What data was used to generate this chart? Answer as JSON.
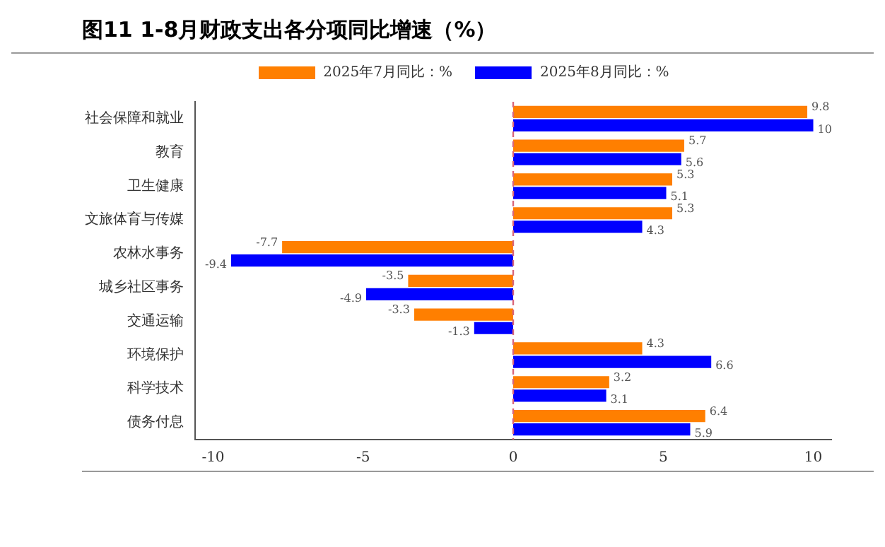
{
  "chart_data": {
    "type": "bar",
    "orientation": "horizontal",
    "title": "图11 1-8月财政支出各分项同比增速（%）",
    "categories": [
      "社会保障和就业",
      "教育",
      "卫生健康",
      "文旅体育与传媒",
      "农林水事务",
      "城乡社区事务",
      "交通运输",
      "环境保护",
      "科学技术",
      "债务付息"
    ],
    "series": [
      {
        "name": "2025年7月同比：%",
        "color": "#ff7f00",
        "values": [
          9.8,
          5.7,
          5.3,
          5.3,
          -7.7,
          -3.5,
          -3.3,
          4.3,
          3.2,
          6.4
        ]
      },
      {
        "name": "2025年8月同比：%",
        "color": "#0000ff",
        "values": [
          10,
          5.6,
          5.1,
          4.3,
          -9.4,
          -4.9,
          -1.3,
          6.6,
          3.1,
          5.9
        ]
      }
    ],
    "xlim": [
      -10.6,
      10.6
    ],
    "xticks": [
      -10,
      -5,
      0,
      5,
      10
    ],
    "ref_lines": [
      {
        "axis": "x",
        "value": 0,
        "color": "#d9667a",
        "line_style": "dashed"
      }
    ],
    "data_labels": true,
    "grid": false,
    "legend": "top"
  }
}
